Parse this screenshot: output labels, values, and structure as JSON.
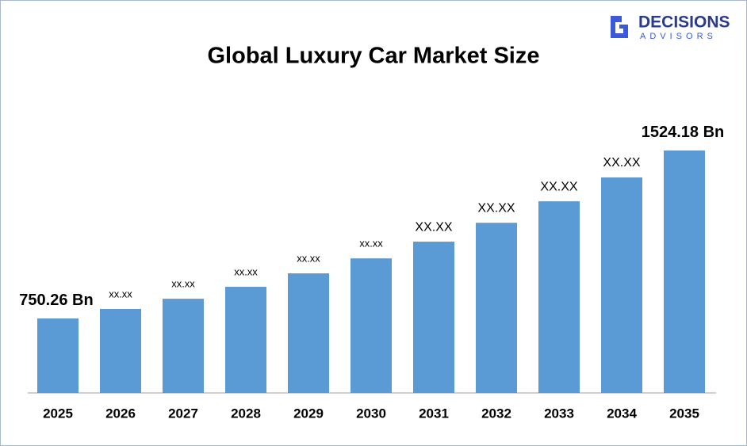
{
  "logo": {
    "name": "DECISIONS",
    "tagline": "ADVISORS"
  },
  "chart_data": {
    "type": "bar",
    "title": "Global Luxury Car Market Size",
    "categories": [
      "2025",
      "2026",
      "2027",
      "2028",
      "2029",
      "2030",
      "2031",
      "2032",
      "2033",
      "2034",
      "2035"
    ],
    "values": [
      750.26,
      794,
      841,
      896,
      958,
      1027,
      1104,
      1191,
      1290,
      1400,
      1524.18
    ],
    "value_labels": [
      "750.26 Bn",
      "xx.xx",
      "xx.xx",
      "xx.xx",
      "xx.xx",
      "xx.xx",
      "XX.XX",
      "XX.XX",
      "XX.XX",
      "XX.XX",
      "1524.18 Bn"
    ],
    "color": "#5b9bd5",
    "ylim": [
      407,
      1670
    ]
  }
}
